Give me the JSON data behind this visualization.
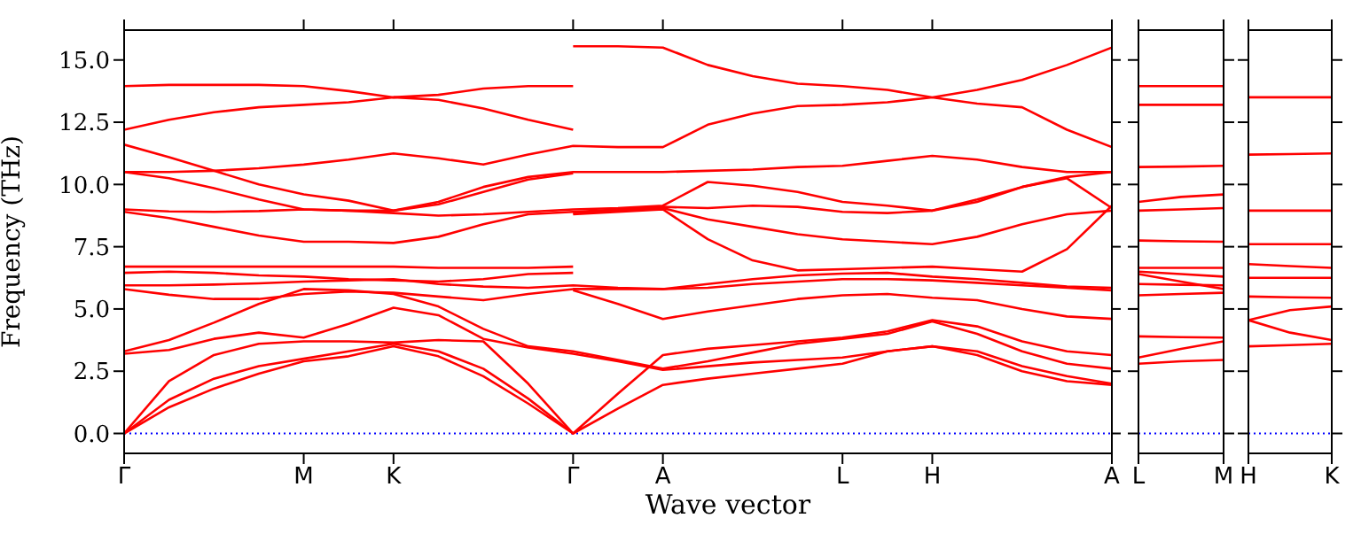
{
  "chart_data": [
    {
      "type": "line",
      "ylabel": "Frequency (THz)",
      "xlabel": "Wave vector",
      "categories": [
        "Γ",
        null,
        null,
        null,
        "M",
        null,
        "K",
        null,
        null,
        null,
        "Γ",
        null,
        "A",
        null,
        null,
        null,
        "L",
        null,
        "H",
        null,
        null,
        null,
        "A"
      ],
      "ylim": [
        -0.8,
        16.2
      ],
      "yticks": [
        {
          "value": 0,
          "label": "0.0"
        },
        {
          "value": 2.5,
          "label": "2.5"
        },
        {
          "value": 5,
          "label": "5.0"
        },
        {
          "value": 7.5,
          "label": "7.5"
        },
        {
          "value": 10,
          "label": "10.0"
        },
        {
          "value": 12.5,
          "label": "12.5"
        },
        {
          "value": 15,
          "label": "15.0"
        }
      ],
      "marker": "none",
      "line_style": "solid",
      "ref_lines": [
        {
          "axis": "y",
          "value": 0,
          "label": null,
          "color": "#0000ff",
          "line_style": "dotted"
        }
      ],
      "series": [
        {
          "color": "#ff0000",
          "values": [
            13.95,
            14.0,
            14.0,
            14.0,
            13.95,
            13.75,
            13.5,
            13.6,
            13.85,
            13.95,
            13.95,
            null,
            null,
            null,
            null,
            null,
            null,
            null,
            null,
            null,
            null,
            null,
            null
          ]
        },
        {
          "color": "#ff0000",
          "values": [
            12.2,
            12.6,
            12.9,
            13.1,
            13.2,
            13.3,
            13.5,
            13.4,
            13.05,
            12.6,
            12.2,
            null,
            null,
            null,
            null,
            null,
            null,
            null,
            null,
            null,
            null,
            null,
            null
          ]
        },
        {
          "color": "#ff0000",
          "values": [
            11.6,
            11.1,
            10.55,
            10.0,
            9.6,
            9.35,
            8.95,
            9.3,
            9.9,
            10.3,
            10.5,
            10.5,
            10.5,
            10.55,
            10.6,
            10.7,
            10.75,
            10.95,
            11.15,
            11.0,
            10.7,
            10.5,
            10.5
          ]
        },
        {
          "color": "#ff0000",
          "values": [
            10.5,
            10.5,
            10.55,
            10.65,
            10.8,
            11.0,
            11.25,
            11.05,
            10.8,
            11.2,
            11.55,
            11.5,
            11.5,
            12.4,
            12.85,
            13.15,
            13.2,
            13.3,
            13.5,
            13.8,
            14.2,
            14.8,
            15.5
          ]
        },
        {
          "color": "#ff0000",
          "values": [
            10.5,
            10.25,
            9.85,
            9.4,
            9.0,
            8.95,
            8.95,
            9.2,
            9.7,
            10.2,
            10.45,
            null,
            null,
            null,
            null,
            null,
            null,
            null,
            null,
            null,
            null,
            null,
            null
          ]
        },
        {
          "color": "#ff0000",
          "values": [
            9.0,
            8.92,
            8.9,
            8.93,
            9.0,
            8.95,
            8.85,
            8.75,
            8.8,
            8.9,
            9.0,
            9.05,
            9.15,
            10.1,
            9.95,
            9.7,
            9.3,
            9.15,
            8.95,
            9.3,
            9.9,
            10.3,
            10.5
          ]
        },
        {
          "color": "#ff0000",
          "values": [
            8.9,
            8.65,
            8.3,
            7.95,
            7.7,
            7.7,
            7.65,
            7.9,
            8.4,
            8.8,
            8.9,
            9.0,
            9.1,
            9.05,
            9.15,
            9.1,
            8.9,
            8.85,
            8.95,
            9.4,
            9.9,
            10.25,
            9.05
          ]
        },
        {
          "color": "#ff0000",
          "values": [
            6.7,
            6.7,
            6.7,
            6.7,
            6.7,
            6.7,
            6.7,
            6.65,
            6.65,
            6.65,
            6.7,
            null,
            null,
            null,
            null,
            null,
            null,
            null,
            null,
            null,
            null,
            null,
            null
          ]
        },
        {
          "color": "#ff0000",
          "values": [
            6.45,
            6.5,
            6.45,
            6.35,
            6.3,
            6.2,
            6.15,
            6.1,
            6.2,
            6.4,
            6.45,
            null,
            null,
            null,
            null,
            null,
            null,
            null,
            null,
            null,
            null,
            null,
            null
          ]
        },
        {
          "color": "#ff0000",
          "values": [
            5.95,
            5.95,
            5.98,
            6.03,
            6.1,
            6.15,
            6.2,
            6.0,
            5.9,
            5.85,
            5.95,
            5.85,
            5.8,
            6.0,
            6.2,
            6.35,
            6.42,
            6.45,
            6.3,
            6.2,
            6.05,
            5.9,
            5.85
          ]
        },
        {
          "color": "#ff0000",
          "values": [
            5.8,
            5.57,
            5.4,
            5.4,
            5.6,
            5.7,
            5.65,
            5.5,
            5.35,
            5.6,
            5.8,
            5.8,
            5.8,
            5.85,
            6.0,
            6.1,
            6.2,
            6.2,
            6.15,
            6.05,
            5.95,
            5.85,
            5.75
          ]
        },
        {
          "color": "#ff0000",
          "values": [
            3.3,
            3.75,
            4.45,
            5.2,
            5.8,
            5.75,
            5.6,
            5.1,
            4.2,
            3.5,
            3.3,
            2.95,
            2.6,
            2.9,
            3.25,
            3.6,
            3.8,
            4.0,
            4.5,
            4.0,
            3.3,
            2.8,
            2.6
          ]
        },
        {
          "color": "#ff0000",
          "values": [
            3.2,
            3.35,
            3.8,
            4.05,
            3.85,
            4.4,
            5.05,
            4.75,
            3.8,
            3.45,
            3.2,
            2.9,
            2.55,
            2.7,
            2.85,
            2.95,
            3.05,
            3.3,
            3.5,
            3.3,
            2.7,
            2.3,
            2.0
          ]
        },
        {
          "color": "#ff0000",
          "values": [
            0,
            2.1,
            3.15,
            3.6,
            3.7,
            3.7,
            3.65,
            3.75,
            3.7,
            2.0,
            0,
            1.6,
            3.15,
            3.4,
            3.55,
            3.7,
            3.85,
            4.1,
            4.55,
            4.3,
            3.7,
            3.3,
            3.15
          ]
        },
        {
          "color": "#ff0000",
          "values": [
            0,
            1.35,
            2.2,
            2.7,
            3.0,
            3.3,
            3.6,
            3.3,
            2.6,
            1.4,
            0,
            null,
            null,
            null,
            null,
            null,
            null,
            null,
            null,
            null,
            null,
            null,
            null
          ]
        },
        {
          "color": "#ff0000",
          "values": [
            0,
            1.05,
            1.8,
            2.4,
            2.9,
            3.1,
            3.5,
            3.1,
            2.3,
            1.2,
            0,
            1.0,
            1.95,
            2.2,
            2.4,
            2.6,
            2.8,
            3.3,
            3.5,
            3.15,
            2.5,
            2.1,
            1.95
          ]
        },
        {
          "color": "#ff0000",
          "values": [
            null,
            null,
            null,
            null,
            null,
            null,
            null,
            null,
            null,
            null,
            15.55,
            15.55,
            15.5,
            14.8,
            14.35,
            14.05,
            13.95,
            13.8,
            13.5,
            13.25,
            13.1,
            12.2,
            11.5
          ]
        },
        {
          "color": "#ff0000",
          "values": [
            null,
            null,
            null,
            null,
            null,
            null,
            null,
            null,
            null,
            null,
            8.85,
            8.95,
            9.05,
            8.6,
            8.3,
            8.0,
            7.8,
            7.7,
            7.6,
            7.9,
            8.4,
            8.8,
            8.95
          ]
        },
        {
          "color": "#ff0000",
          "values": [
            null,
            null,
            null,
            null,
            null,
            null,
            null,
            null,
            null,
            null,
            8.8,
            8.9,
            9.0,
            7.8,
            6.95,
            6.55,
            6.6,
            6.65,
            6.7,
            6.6,
            6.5,
            7.4,
            9.15
          ]
        },
        {
          "color": "#ff0000",
          "values": [
            null,
            null,
            null,
            null,
            null,
            null,
            null,
            null,
            null,
            null,
            5.75,
            5.2,
            4.6,
            4.9,
            5.15,
            5.4,
            5.55,
            5.6,
            5.45,
            5.35,
            5.0,
            4.7,
            4.6
          ]
        }
      ]
    },
    {
      "type": "line",
      "categories": [
        "L",
        null,
        "M"
      ],
      "ylim": [
        -0.8,
        16.2
      ],
      "yticks": [
        {
          "value": 0,
          "label": null
        },
        {
          "value": 2.5,
          "label": null
        },
        {
          "value": 5,
          "label": null
        },
        {
          "value": 7.5,
          "label": null
        },
        {
          "value": 10,
          "label": null
        },
        {
          "value": 12.5,
          "label": null
        },
        {
          "value": 15,
          "label": null
        }
      ],
      "tick_labels": "x",
      "marker": "none",
      "line_style": "solid",
      "ref_lines": [
        {
          "axis": "y",
          "value": 0,
          "label": null,
          "color": "#0000ff",
          "line_style": "dotted"
        }
      ],
      "series": [
        {
          "color": "#ff0000",
          "values": [
            13.95,
            13.95,
            13.95
          ]
        },
        {
          "color": "#ff0000",
          "values": [
            13.2,
            13.2,
            13.2
          ]
        },
        {
          "color": "#ff0000",
          "values": [
            10.7,
            10.72,
            10.75
          ]
        },
        {
          "color": "#ff0000",
          "values": [
            9.3,
            9.5,
            9.6
          ]
        },
        {
          "color": "#ff0000",
          "values": [
            8.95,
            9.0,
            9.05
          ]
        },
        {
          "color": "#ff0000",
          "values": [
            7.75,
            7.72,
            7.7
          ]
        },
        {
          "color": "#ff0000",
          "values": [
            6.65,
            6.65,
            6.65
          ]
        },
        {
          "color": "#ff0000",
          "values": [
            6.5,
            6.4,
            6.3
          ]
        },
        {
          "color": "#ff0000",
          "values": [
            6.4,
            6.1,
            5.8
          ]
        },
        {
          "color": "#ff0000",
          "values": [
            6.0,
            5.97,
            5.95
          ]
        },
        {
          "color": "#ff0000",
          "values": [
            5.55,
            5.6,
            5.65
          ]
        },
        {
          "color": "#ff0000",
          "values": [
            3.9,
            3.87,
            3.85
          ]
        },
        {
          "color": "#ff0000",
          "values": [
            3.05,
            3.4,
            3.7
          ]
        },
        {
          "color": "#ff0000",
          "values": [
            2.8,
            2.9,
            2.95
          ]
        }
      ]
    },
    {
      "type": "line",
      "categories": [
        "H",
        null,
        "K"
      ],
      "ylim": [
        -0.8,
        16.2
      ],
      "yticks": [
        {
          "value": 0,
          "label": null
        },
        {
          "value": 2.5,
          "label": null
        },
        {
          "value": 5,
          "label": null
        },
        {
          "value": 7.5,
          "label": null
        },
        {
          "value": 10,
          "label": null
        },
        {
          "value": 12.5,
          "label": null
        },
        {
          "value": 15,
          "label": null
        }
      ],
      "tick_labels": "x",
      "marker": "none",
      "line_style": "solid",
      "ref_lines": [
        {
          "axis": "y",
          "value": 0,
          "label": null,
          "color": "#0000ff",
          "line_style": "dotted"
        }
      ],
      "series": [
        {
          "color": "#ff0000",
          "values": [
            13.5,
            13.5,
            13.5
          ]
        },
        {
          "color": "#ff0000",
          "values": [
            11.2,
            11.22,
            11.25
          ]
        },
        {
          "color": "#ff0000",
          "values": [
            8.95,
            8.95,
            8.95
          ]
        },
        {
          "color": "#ff0000",
          "values": [
            7.6,
            7.6,
            7.6
          ]
        },
        {
          "color": "#ff0000",
          "values": [
            6.8,
            6.72,
            6.65
          ]
        },
        {
          "color": "#ff0000",
          "values": [
            6.25,
            6.25,
            6.25
          ]
        },
        {
          "color": "#ff0000",
          "values": [
            5.5,
            5.47,
            5.45
          ]
        },
        {
          "color": "#ff0000",
          "values": [
            4.55,
            4.95,
            5.1
          ]
        },
        {
          "color": "#ff0000",
          "values": [
            4.55,
            4.05,
            3.75
          ]
        },
        {
          "color": "#ff0000",
          "values": [
            3.5,
            3.55,
            3.6
          ]
        }
      ]
    }
  ]
}
